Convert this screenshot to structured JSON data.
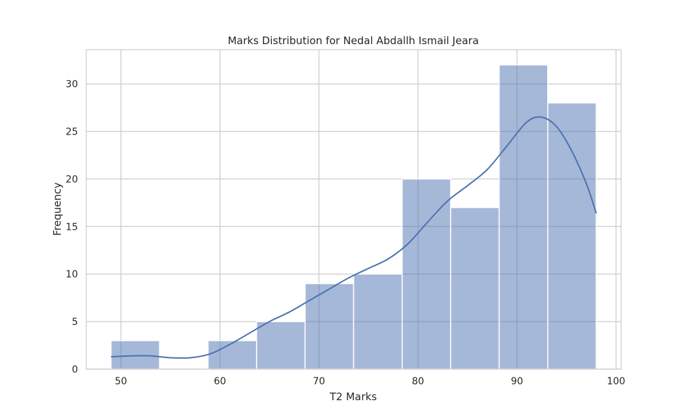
{
  "chart_data": {
    "type": "bar",
    "title": "Marks Distribution for Nedal Abdallh Ismail Jeara",
    "xlabel": "T2 Marks",
    "ylabel": "Frequency",
    "bins": [
      {
        "start": 49.0,
        "end": 53.9,
        "count": 3
      },
      {
        "start": 53.9,
        "end": 58.8,
        "count": 0
      },
      {
        "start": 58.8,
        "end": 63.7,
        "count": 3
      },
      {
        "start": 63.7,
        "end": 68.6,
        "count": 5
      },
      {
        "start": 68.6,
        "end": 73.5,
        "count": 9
      },
      {
        "start": 73.5,
        "end": 78.4,
        "count": 10
      },
      {
        "start": 78.4,
        "end": 83.3,
        "count": 20
      },
      {
        "start": 83.3,
        "end": 88.2,
        "count": 17
      },
      {
        "start": 88.2,
        "end": 93.1,
        "count": 32
      },
      {
        "start": 93.1,
        "end": 98.0,
        "count": 28
      }
    ],
    "kde": {
      "x": [
        49,
        51,
        53,
        55,
        57,
        59,
        61,
        63,
        65,
        67,
        69,
        71,
        73,
        75,
        77,
        79,
        81,
        83,
        85,
        87,
        89,
        91,
        92.5,
        94,
        95.5,
        97,
        98
      ],
      "y": [
        1.3,
        1.4,
        1.4,
        1.2,
        1.2,
        1.6,
        2.6,
        3.8,
        5.0,
        6.0,
        7.2,
        8.4,
        9.6,
        10.6,
        11.6,
        13.2,
        15.5,
        17.7,
        19.3,
        21.0,
        23.5,
        26.0,
        26.5,
        25.5,
        23.0,
        19.5,
        16.4
      ]
    },
    "xlim": [
      46.5,
      100.5
    ],
    "ylim": [
      0,
      33.6
    ],
    "xticks": [
      50,
      60,
      70,
      80,
      90,
      100
    ],
    "yticks": [
      0,
      5,
      10,
      15,
      20,
      25,
      30
    ],
    "grid": true,
    "bar_color": "#4c72b0",
    "bar_opacity": 0.5,
    "line_color": "#4c72b0"
  }
}
